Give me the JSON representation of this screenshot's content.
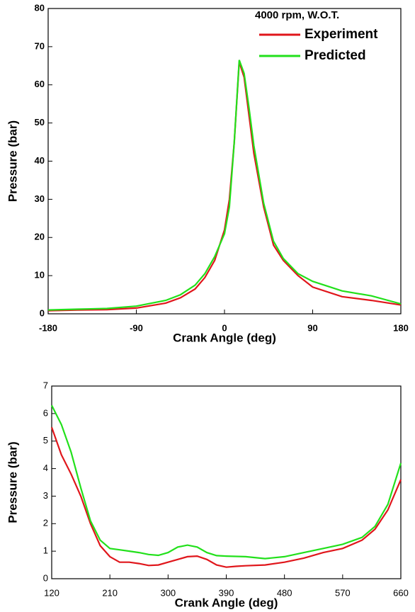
{
  "chart_data": [
    {
      "type": "line",
      "title": "4000 rpm,  W.O.T.",
      "x_label": "Crank Angle (deg)",
      "y_label": "Pressure (bar)",
      "x": [
        -180,
        -150,
        -120,
        -90,
        -60,
        -45,
        -30,
        -20,
        -10,
        0,
        5,
        10,
        15,
        20,
        25,
        30,
        40,
        50,
        60,
        75,
        90,
        120,
        150,
        180
      ],
      "series": [
        {
          "name": "Experiment",
          "color": "#e0161b",
          "values": [
            0.8,
            1.0,
            1.1,
            1.5,
            2.8,
            4.2,
            6.5,
            9.5,
            14,
            22,
            30,
            45,
            66,
            62,
            52,
            42,
            28,
            18,
            14,
            10,
            7,
            4.5,
            3.5,
            2.3
          ]
        },
        {
          "name": "Predicted",
          "color": "#22e01b",
          "values": [
            1.0,
            1.2,
            1.4,
            2.0,
            3.5,
            5.0,
            7.5,
            10.5,
            15,
            21,
            28,
            45,
            66.5,
            63,
            54,
            44,
            29,
            19,
            14.5,
            10.5,
            8.5,
            6,
            4.7,
            2.6
          ]
        }
      ],
      "xlim": [
        -180,
        180
      ],
      "xticks": [
        -180,
        -90,
        0,
        90,
        180
      ],
      "ylim": [
        0,
        80
      ],
      "yticks": [
        0,
        10,
        20,
        30,
        40,
        50,
        60,
        70,
        80
      ],
      "legend": "upper right"
    },
    {
      "type": "line",
      "x_label": "Crank Angle (deg)",
      "y_label": "Pressure (bar)",
      "x": [
        120,
        135,
        150,
        165,
        180,
        195,
        210,
        225,
        240,
        255,
        270,
        285,
        300,
        315,
        330,
        345,
        360,
        375,
        390,
        405,
        420,
        450,
        480,
        510,
        540,
        570,
        600,
        620,
        640,
        660
      ],
      "series": [
        {
          "color": "#e0161b",
          "values": [
            5.5,
            4.5,
            3.8,
            3.0,
            2.0,
            1.2,
            0.8,
            0.6,
            0.6,
            0.55,
            0.48,
            0.5,
            0.6,
            0.7,
            0.8,
            0.82,
            0.7,
            0.5,
            0.42,
            0.45,
            0.47,
            0.5,
            0.6,
            0.75,
            0.95,
            1.1,
            1.4,
            1.8,
            2.5,
            3.6
          ]
        },
        {
          "color": "#22e01b",
          "values": [
            6.3,
            5.6,
            4.6,
            3.3,
            2.1,
            1.4,
            1.1,
            1.05,
            1.0,
            0.95,
            0.88,
            0.85,
            0.95,
            1.15,
            1.22,
            1.15,
            0.95,
            0.84,
            0.82,
            0.81,
            0.8,
            0.73,
            0.8,
            0.95,
            1.1,
            1.25,
            1.5,
            1.9,
            2.7,
            4.2
          ]
        }
      ],
      "xlim": [
        120,
        660
      ],
      "xticks": [
        120,
        210,
        300,
        390,
        480,
        570,
        660
      ],
      "ylim": [
        0,
        7
      ],
      "yticks": [
        0,
        1,
        2,
        3,
        4,
        5,
        6,
        7
      ]
    }
  ]
}
